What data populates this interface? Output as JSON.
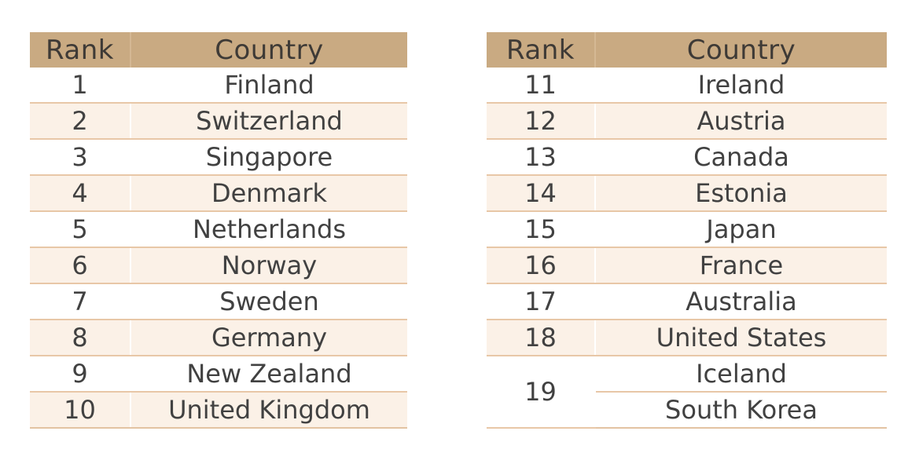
{
  "headers": {
    "rank": "Rank",
    "country": "Country"
  },
  "left_rows": [
    {
      "rank": "1",
      "country": "Finland"
    },
    {
      "rank": "2",
      "country": "Switzerland"
    },
    {
      "rank": "3",
      "country": "Singapore"
    },
    {
      "rank": "4",
      "country": "Denmark"
    },
    {
      "rank": "5",
      "country": "Netherlands"
    },
    {
      "rank": "6",
      "country": "Norway"
    },
    {
      "rank": "7",
      "country": "Sweden"
    },
    {
      "rank": "8",
      "country": "Germany"
    },
    {
      "rank": "9",
      "country": "New Zealand"
    },
    {
      "rank": "10",
      "country": "United Kingdom"
    }
  ],
  "right_rows": [
    {
      "rank": "11",
      "country": "Ireland"
    },
    {
      "rank": "12",
      "country": "Austria"
    },
    {
      "rank": "13",
      "country": "Canada"
    },
    {
      "rank": "14",
      "country": "Estonia"
    },
    {
      "rank": "15",
      "country": "Japan"
    },
    {
      "rank": "16",
      "country": "France"
    },
    {
      "rank": "17",
      "country": "Australia"
    },
    {
      "rank": "18",
      "country": "United States"
    },
    {
      "rank": "19",
      "country": "Iceland"
    },
    {
      "rank": "19",
      "country": "South Korea"
    }
  ],
  "colors": {
    "header_bg": "#c9aa82",
    "stripe_bg": "#fbf1e7",
    "row_border": "#e8c7a7",
    "text": "#414141"
  }
}
